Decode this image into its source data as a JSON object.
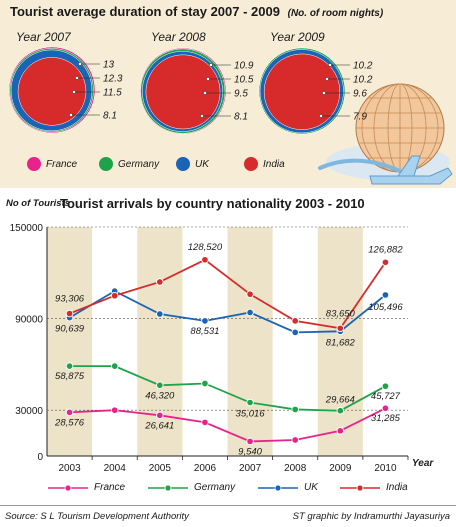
{
  "header": {
    "title": "Tourist average duration of stay 2007 - 2009",
    "note": "(No. of room nights)"
  },
  "colors": {
    "france": "#e8228c",
    "germany": "#1fa34a",
    "uk": "#1b63b5",
    "india": "#d72a2a",
    "panel": "#f7ecd6",
    "band": "#ede3c8"
  },
  "legend": [
    "France",
    "Germany",
    "UK",
    "India"
  ],
  "chart_data": [
    {
      "type": "pie",
      "title": "Tourist average duration of stay 2007 - 2009",
      "subtitle": "(No. of room nights)",
      "groups": [
        {
          "label": "Year 2007",
          "values": [
            {
              "name": "France",
              "value": 13
            },
            {
              "name": "Germany",
              "value": 12.3
            },
            {
              "name": "UK",
              "value": 11.5
            },
            {
              "name": "India",
              "value": 8.1
            }
          ]
        },
        {
          "label": "Year 2008",
          "values": [
            {
              "name": "France",
              "value": 10.9
            },
            {
              "name": "Germany",
              "value": 10.5
            },
            {
              "name": "UK",
              "value": 9.5
            },
            {
              "name": "India",
              "value": 8.1
            }
          ]
        },
        {
          "label": "Year 2009",
          "values": [
            {
              "name": "France",
              "value": 10.2
            },
            {
              "name": "Germany",
              "value": 10.2
            },
            {
              "name": "UK",
              "value": 9.6
            },
            {
              "name": "India",
              "value": 7.9
            }
          ]
        }
      ],
      "value_labels": [
        [
          "13",
          "12.3",
          "11.5",
          "8.1"
        ],
        [
          "10.9",
          "10.5",
          "9.5",
          "8.1"
        ],
        [
          "10.2",
          "10.2",
          "9.6",
          "7.9"
        ]
      ]
    },
    {
      "type": "line",
      "title": "Tourist arrivals by country nationality  2003 - 2010",
      "ylabel": "No of Tourists",
      "xlabel": "Year",
      "categories": [
        "2003",
        "2004",
        "2005",
        "2006",
        "2007",
        "2008",
        "2009",
        "2010"
      ],
      "yticks": [
        "0",
        "30000",
        "90000",
        "150000"
      ],
      "ylim": [
        0,
        150000
      ],
      "series": [
        {
          "name": "France",
          "values": [
            28576,
            30000,
            26641,
            22000,
            9540,
            10500,
            16500,
            31285
          ]
        },
        {
          "name": "Germany",
          "values": [
            58875,
            58875,
            46320,
            47500,
            35016,
            30500,
            29664,
            45727
          ]
        },
        {
          "name": "UK",
          "values": [
            90639,
            108000,
            93000,
            88531,
            94000,
            81000,
            81682,
            105496
          ]
        },
        {
          "name": "India",
          "values": [
            93306,
            105000,
            114000,
            128520,
            106000,
            88500,
            83650,
            126882
          ]
        }
      ],
      "annotations": [
        {
          "text": "93,306",
          "x": "2003",
          "y": 93306,
          "series": "India"
        },
        {
          "text": "90,639",
          "x": "2003",
          "y": 90639,
          "series": "UK"
        },
        {
          "text": "58,875",
          "x": "2003",
          "y": 58875,
          "series": "Germany"
        },
        {
          "text": "28,576",
          "x": "2003",
          "y": 28576,
          "series": "France"
        },
        {
          "text": "46,320",
          "x": "2005",
          "y": 46320,
          "series": "Germany"
        },
        {
          "text": "26,641",
          "x": "2005",
          "y": 26641,
          "series": "France"
        },
        {
          "text": "128,520",
          "x": "2006",
          "y": 128520,
          "series": "India"
        },
        {
          "text": "88,531",
          "x": "2006",
          "y": 88531,
          "series": "UK"
        },
        {
          "text": "35,016",
          "x": "2007",
          "y": 35016,
          "series": "Germany"
        },
        {
          "text": "9,540",
          "x": "2007",
          "y": 9540,
          "series": "France"
        },
        {
          "text": "83,650",
          "x": "2009",
          "y": 83650,
          "series": "India"
        },
        {
          "text": "81,682",
          "x": "2009",
          "y": 81682,
          "series": "UK"
        },
        {
          "text": "29,664",
          "x": "2009",
          "y": 29664,
          "series": "Germany"
        },
        {
          "text": "126,882",
          "x": "2010",
          "y": 126882,
          "series": "India"
        },
        {
          "text": "105,496",
          "x": "2010",
          "y": 105496,
          "series": "UK"
        },
        {
          "text": "45,727",
          "x": "2010",
          "y": 45727,
          "series": "Germany"
        },
        {
          "text": "31,285",
          "x": "2010",
          "y": 31285,
          "series": "France"
        }
      ]
    }
  ],
  "footer": {
    "source": "Source: S L Tourism Development Authority",
    "credit": "ST graphic by Indramurthi Jayasuriya"
  }
}
